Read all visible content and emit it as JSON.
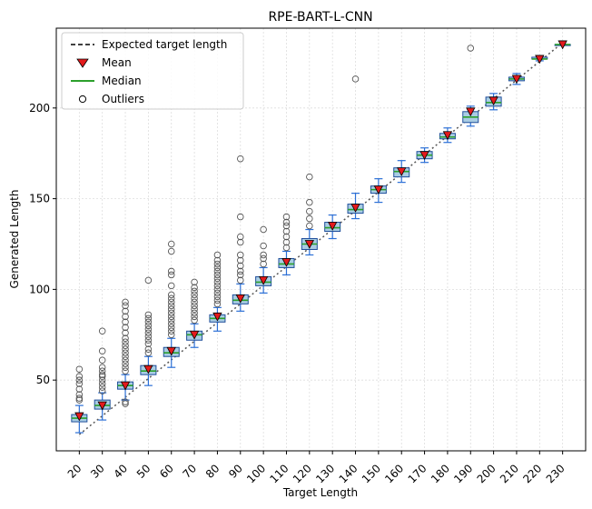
{
  "chart_data": {
    "type": "box",
    "title": "RPE-BART-L-CNN",
    "xlabel": "Target Length",
    "ylabel": "Generated Length",
    "categories": [
      "20",
      "30",
      "40",
      "50",
      "60",
      "70",
      "80",
      "90",
      "100",
      "110",
      "120",
      "130",
      "140",
      "150",
      "160",
      "170",
      "180",
      "190",
      "200",
      "210",
      "220",
      "230"
    ],
    "xlim": [
      10,
      240
    ],
    "ylim": [
      11,
      244
    ],
    "yticks": [
      50,
      100,
      150,
      200
    ],
    "grid": true,
    "legend": {
      "placement": "top-left",
      "entries": [
        {
          "key": "expected",
          "label": "Expected target length"
        },
        {
          "key": "mean",
          "label": "Mean"
        },
        {
          "key": "median",
          "label": "Median"
        },
        {
          "key": "outliers",
          "label": "Outliers"
        }
      ]
    },
    "colors": {
      "box_fill": "#a9cce3",
      "box_edge": "#1f4e9b",
      "whisker": "#2b6fd6",
      "median": "#2ca02c",
      "mean_fill": "#e31a1c",
      "mean_edge": "#000000",
      "expected_line": "#555555",
      "outlier_edge": "#555555",
      "grid": "#dddddd"
    },
    "expected_line": {
      "x": [
        20,
        230
      ],
      "y": [
        20,
        236
      ]
    },
    "boxes": [
      {
        "x": 20,
        "whislo": 21,
        "q1": 27,
        "med": 29,
        "q3": 31,
        "whishi": 36,
        "mean": 30,
        "fliers": [
          39,
          40,
          42,
          45,
          48,
          50,
          52,
          56
        ]
      },
      {
        "x": 30,
        "whislo": 28,
        "q1": 34,
        "med": 36,
        "q3": 39,
        "whishi": 43,
        "mean": 36,
        "fliers": [
          44,
          46,
          48,
          50,
          52,
          53,
          55,
          57,
          61,
          66,
          77
        ]
      },
      {
        "x": 40,
        "whislo": 39,
        "q1": 45,
        "med": 47,
        "q3": 49,
        "whishi": 53,
        "mean": 47,
        "fliers": [
          37,
          38,
          55,
          57,
          59,
          61,
          63,
          65,
          67,
          69,
          71,
          73,
          76,
          79,
          82,
          85,
          88,
          91,
          93
        ]
      },
      {
        "x": 50,
        "whislo": 47,
        "q1": 53,
        "med": 55,
        "q3": 58,
        "whishi": 63,
        "mean": 56,
        "fliers": [
          65,
          67,
          70,
          72,
          74,
          76,
          78,
          80,
          82,
          84,
          86,
          105
        ]
      },
      {
        "x": 60,
        "whislo": 57,
        "q1": 63,
        "med": 65,
        "q3": 68,
        "whishi": 73,
        "mean": 66,
        "fliers": [
          75,
          77,
          79,
          81,
          83,
          85,
          87,
          89,
          91,
          93,
          95,
          97,
          102,
          108,
          110,
          121,
          125
        ]
      },
      {
        "x": 70,
        "whislo": 68,
        "q1": 72,
        "med": 75,
        "q3": 77,
        "whishi": 81,
        "mean": 75,
        "fliers": [
          83,
          85,
          87,
          89,
          91,
          93,
          95,
          97,
          99,
          101,
          104
        ]
      },
      {
        "x": 80,
        "whislo": 77,
        "q1": 82,
        "med": 84,
        "q3": 86,
        "whishi": 90,
        "mean": 85,
        "fliers": [
          92,
          94,
          96,
          98,
          100,
          102,
          104,
          106,
          108,
          110,
          112,
          114,
          116,
          119
        ]
      },
      {
        "x": 90,
        "whislo": 88,
        "q1": 92,
        "med": 94,
        "q3": 97,
        "whishi": 103,
        "mean": 95,
        "fliers": [
          105,
          108,
          110,
          113,
          116,
          119,
          126,
          129,
          140,
          172
        ]
      },
      {
        "x": 100,
        "whislo": 98,
        "q1": 102,
        "med": 104,
        "q3": 107,
        "whishi": 112,
        "mean": 105,
        "fliers": [
          114,
          117,
          119,
          124,
          133
        ]
      },
      {
        "x": 110,
        "whislo": 108,
        "q1": 112,
        "med": 114,
        "q3": 117,
        "whishi": 121,
        "mean": 115,
        "fliers": [
          123,
          126,
          129,
          132,
          135,
          137,
          140
        ]
      },
      {
        "x": 120,
        "whislo": 119,
        "q1": 122,
        "med": 125,
        "q3": 128,
        "whishi": 133,
        "mean": 125,
        "fliers": [
          135,
          139,
          143,
          148,
          162
        ]
      },
      {
        "x": 130,
        "whislo": 128,
        "q1": 132,
        "med": 134,
        "q3": 137,
        "whishi": 141,
        "mean": 135
      },
      {
        "x": 140,
        "whislo": 139,
        "q1": 142,
        "med": 144,
        "q3": 147,
        "whishi": 153,
        "mean": 145,
        "fliers": [
          216
        ]
      },
      {
        "x": 150,
        "whislo": 148,
        "q1": 153,
        "med": 155,
        "q3": 157,
        "whishi": 161,
        "mean": 155
      },
      {
        "x": 160,
        "whislo": 159,
        "q1": 162,
        "med": 165,
        "q3": 167,
        "whishi": 171,
        "mean": 165
      },
      {
        "x": 170,
        "whislo": 170,
        "q1": 172,
        "med": 174,
        "q3": 176,
        "whishi": 178,
        "mean": 174
      },
      {
        "x": 180,
        "whislo": 181,
        "q1": 183,
        "med": 184,
        "q3": 186,
        "whishi": 189,
        "mean": 185
      },
      {
        "x": 190,
        "whislo": 190,
        "q1": 192,
        "med": 195,
        "q3": 198,
        "whishi": 201,
        "mean": 198,
        "fliers": [
          233
        ]
      },
      {
        "x": 200,
        "whislo": 199,
        "q1": 201,
        "med": 203,
        "q3": 206,
        "whishi": 208,
        "mean": 204
      },
      {
        "x": 210,
        "whislo": 213,
        "q1": 215,
        "med": 216,
        "q3": 217,
        "whishi": 219,
        "mean": 216
      },
      {
        "x": 220,
        "whislo": 226,
        "q1": 227,
        "med": 227,
        "q3": 228,
        "whishi": 228,
        "mean": 227
      },
      {
        "x": 230,
        "whislo": 235,
        "q1": 235,
        "med": 235,
        "q3": 235,
        "whishi": 235,
        "mean": 235
      }
    ]
  }
}
